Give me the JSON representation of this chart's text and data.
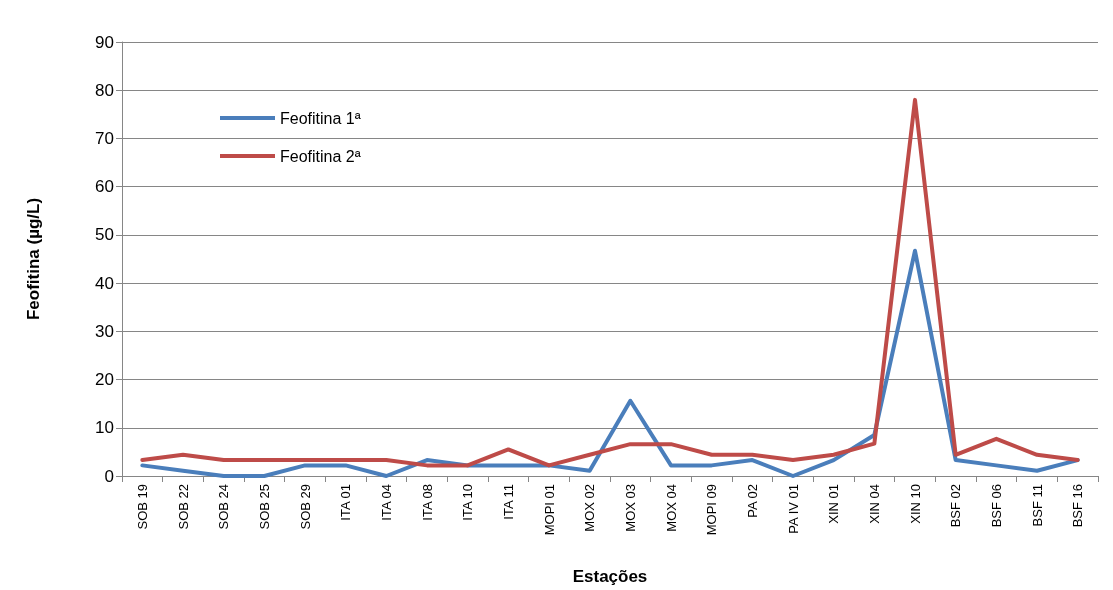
{
  "chart_data": {
    "type": "line",
    "xlabel": "Estações",
    "ylabel": "Feofitina (µg/L)",
    "categories": [
      "SOB 19",
      "SOB 22",
      "SOB 24",
      "SOB 25",
      "SOB 29",
      "ITA 01",
      "ITA 04",
      "ITA 08",
      "ITA 10",
      "ITA 11",
      "MOPI 01",
      "MOX 02",
      "MOX 03",
      "MOX 04",
      "MOPI 09",
      "PA 02",
      "PA IV 01",
      "XIN 01",
      "XIN 04",
      "XIN 10",
      "BSF 02",
      "BSF 06",
      "BSF 11",
      "BSF 16"
    ],
    "series": [
      {
        "name": "Feofitina 1ª",
        "color": "#4a7ebb",
        "values": [
          2.2,
          1.1,
          0,
          0,
          2.2,
          2.2,
          0,
          3.3,
          2.2,
          2.2,
          2.2,
          1.1,
          15.6,
          2.2,
          2.2,
          3.3,
          0,
          3.3,
          8.5,
          46.7,
          3.3,
          2.2,
          1.1,
          3.3
        ]
      },
      {
        "name": "Feofitina 2ª",
        "color": "#be4b48",
        "values": [
          3.3,
          4.4,
          3.3,
          3.3,
          3.3,
          3.3,
          3.3,
          2.2,
          2.2,
          5.5,
          2.2,
          4.4,
          6.6,
          6.6,
          4.4,
          4.4,
          3.3,
          4.4,
          6.7,
          78,
          4.4,
          7.7,
          4.4,
          3.3
        ]
      }
    ],
    "ylim": [
      0,
      90
    ],
    "yticks": [
      0,
      10,
      20,
      30,
      40,
      50,
      60,
      70,
      80,
      90
    ],
    "grid": "y",
    "legend": "top left",
    "marker": "none",
    "line_style": "solid"
  }
}
